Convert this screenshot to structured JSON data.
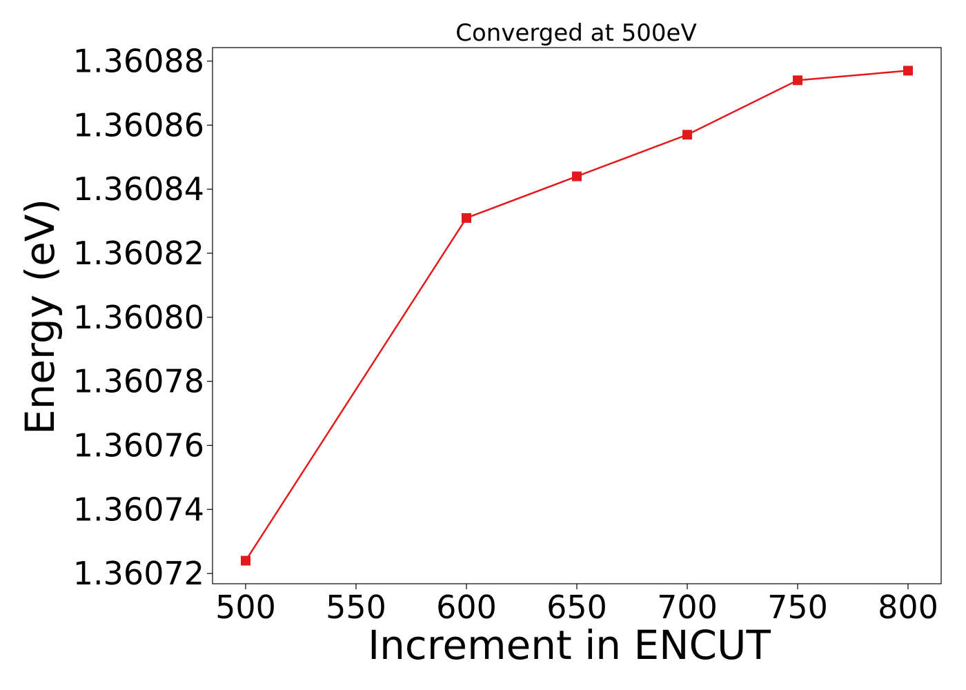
{
  "chart_data": {
    "type": "line",
    "title": "Converged at 500eV",
    "xlabel": "Increment in ENCUT",
    "ylabel": "Energy (eV)",
    "x": [
      500,
      600,
      650,
      700,
      750,
      800
    ],
    "series": [
      {
        "values": [
          1.360724,
          1.360831,
          1.360844,
          1.360857,
          1.360874,
          1.360877
        ],
        "color": "#e31a1c",
        "marker": "square"
      }
    ],
    "xticks": [
      "500",
      "550",
      "600",
      "650",
      "700",
      "750",
      "800"
    ],
    "yticks": [
      "1.36072",
      "1.36074",
      "1.36076",
      "1.36078",
      "1.36080",
      "1.36082",
      "1.36084",
      "1.36086",
      "1.36088"
    ],
    "xlim": [
      485,
      815
    ],
    "ylim": [
      1.3607168,
      1.3608842
    ],
    "grid": false,
    "legend": "none"
  }
}
